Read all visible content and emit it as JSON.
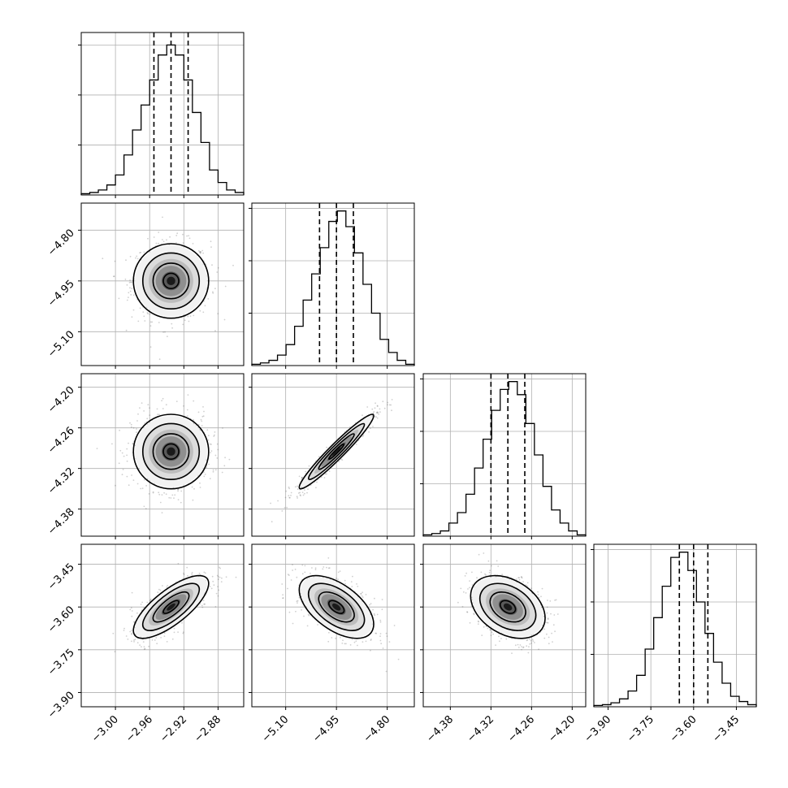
{
  "chart_data": {
    "type": "corner",
    "grid": true,
    "parameters": [
      {
        "range": [
          -3.04,
          -2.85
        ],
        "mean": -2.935,
        "sd": 0.02,
        "quantiles": [
          -2.955,
          -2.935,
          -2.915
        ],
        "ticks": [
          -3.0,
          -2.96,
          -2.92,
          -2.88
        ],
        "tick_labels": [
          "−3.00",
          "−2.96",
          "−2.92",
          "−2.88"
        ],
        "hist_ticks": [
          -3.0,
          -2.96,
          -2.92,
          -2.88
        ],
        "hist_ylim": 0.65,
        "hist_yticks": [
          0.2,
          0.4,
          0.6
        ],
        "hist_counts": [
          0.005,
          0.01,
          0.02,
          0.04,
          0.08,
          0.16,
          0.26,
          0.36,
          0.46,
          0.56,
          0.6,
          0.56,
          0.46,
          0.33,
          0.21,
          0.1,
          0.05,
          0.02,
          0.01
        ]
      },
      {
        "range": [
          -5.2,
          -4.72
        ],
        "mean": -4.95,
        "sd": 0.05,
        "quantiles": [
          -5.0,
          -4.95,
          -4.9
        ],
        "ticks": [
          -5.1,
          -4.95,
          -4.8
        ],
        "tick_labels": [
          "−5.10",
          "−4.95",
          "−4.80"
        ],
        "hist_ticks": [
          -5.1,
          -4.95,
          -4.8
        ],
        "hist_ylim": 0.62,
        "hist_yticks": [
          0.2,
          0.4,
          0.6
        ],
        "hist_counts": [
          0.005,
          0.01,
          0.02,
          0.04,
          0.08,
          0.15,
          0.25,
          0.35,
          0.45,
          0.55,
          0.59,
          0.53,
          0.43,
          0.31,
          0.2,
          0.1,
          0.05,
          0.02,
          0.005
        ]
      },
      {
        "range": [
          -4.42,
          -4.18
        ],
        "mean": -4.295,
        "sd": 0.025,
        "quantiles": [
          -4.32,
          -4.295,
          -4.27
        ],
        "ticks": [
          -4.38,
          -4.32,
          -4.26,
          -4.2
        ],
        "tick_labels": [
          "−4.38",
          "−4.32",
          "−4.26",
          "−4.20"
        ],
        "hist_ticks": [
          -4.38,
          -4.32,
          -4.26,
          -4.2
        ],
        "hist_ylim": 0.62,
        "hist_yticks": [
          0.2,
          0.4,
          0.6
        ],
        "hist_counts": [
          0.005,
          0.01,
          0.02,
          0.05,
          0.09,
          0.16,
          0.26,
          0.37,
          0.48,
          0.56,
          0.59,
          0.54,
          0.43,
          0.31,
          0.19,
          0.1,
          0.05,
          0.02,
          0.005
        ]
      },
      {
        "range": [
          -3.95,
          -3.38
        ],
        "mean": -3.6,
        "sd": 0.05,
        "quantiles": [
          -3.65,
          -3.6,
          -3.55
        ],
        "ticks": [
          -3.9,
          -3.75,
          -3.6,
          -3.45
        ],
        "tick_labels": [
          "−3.90",
          "−3.75",
          "−3.60",
          "−3.45"
        ],
        "hist_ticks": [
          -3.9,
          -3.75,
          -3.6,
          -3.45
        ],
        "hist_ylim": 0.62,
        "hist_yticks": [
          0.2,
          0.4,
          0.6
        ],
        "hist_counts": [
          0.005,
          0.008,
          0.015,
          0.03,
          0.06,
          0.12,
          0.22,
          0.34,
          0.46,
          0.57,
          0.59,
          0.52,
          0.4,
          0.28,
          0.17,
          0.09,
          0.04,
          0.02,
          0.008
        ]
      }
    ],
    "correlations": [
      [
        1.0,
        0.0,
        0.0,
        0.75
      ],
      [
        0.0,
        1.0,
        0.96,
        -0.55
      ],
      [
        0.0,
        0.96,
        1.0,
        -0.35
      ],
      [
        0.75,
        -0.55,
        -0.35,
        1.0
      ]
    ]
  }
}
